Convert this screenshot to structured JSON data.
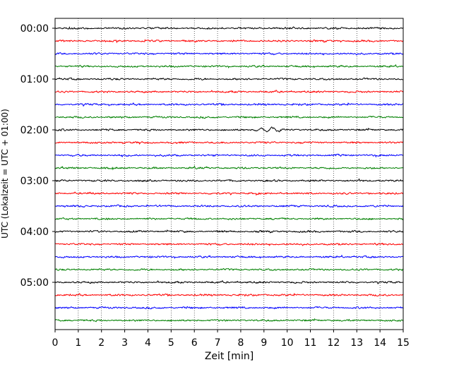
{
  "chart_data": {
    "type": "line",
    "title": "",
    "xlabel": "Zeit  [min]",
    "ylabel": "UTC (Lokalzeit = UTC + 01:00)",
    "xlim": [
      0,
      15
    ],
    "x_ticks": [
      0,
      1,
      2,
      3,
      4,
      5,
      6,
      7,
      8,
      9,
      10,
      11,
      12,
      13,
      14,
      15
    ],
    "hour_labels": [
      "00:00",
      "01:00",
      "02:00",
      "03:00",
      "04:00",
      "05:00"
    ],
    "traces_per_hour": 4,
    "trace_count": 24,
    "trace_colors": [
      "#000000",
      "#ff0000",
      "#0000ff",
      "#008000"
    ],
    "grid": "vertical-dotted",
    "events": [
      {
        "trace_index": 8,
        "x_start_min": 8.5,
        "x_end_min": 10.0,
        "note": "larger amplitude burst on 02:00 trace"
      }
    ]
  }
}
